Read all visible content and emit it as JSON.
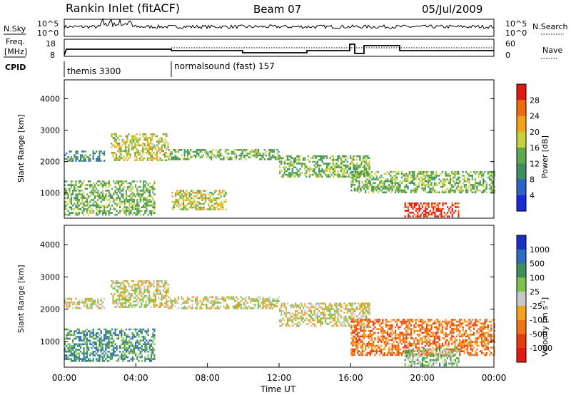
{
  "header": {
    "title": "Rankin Inlet (fitACF)",
    "beam": "Beam 07",
    "date": "05/Jul/2009"
  },
  "top_panels": {
    "nsky_label": "N.Sky",
    "nsearch_label": "N.Search",
    "freq_label_1": "Freq.",
    "freq_label_2": "[MHz]",
    "nave_label": "Nave",
    "cpid_label": "CPID",
    "nsky_ticks": [
      "10^5",
      "10^0"
    ],
    "nsearch_ticks": [
      "10^5",
      "10^0"
    ],
    "freq_ticks": [
      "18",
      "8"
    ],
    "nave_ticks": [
      "60",
      "0"
    ],
    "cpid_segments": [
      {
        "label": "themis 3300",
        "start_hour": 0
      },
      {
        "label": "normalsound (fast) 157",
        "start_hour": 6
      }
    ]
  },
  "chart_data": [
    {
      "type": "heatmap",
      "panel": "power",
      "ylabel": "Slant Range [km]",
      "xlabel": "",
      "xlim_hours": [
        0,
        24
      ],
      "ylim": [
        200,
        4600
      ],
      "yticks": [
        1000,
        2000,
        3000,
        4000
      ],
      "colorbar": {
        "label": "Power [dB]",
        "ticks": [
          "4",
          "8",
          "12",
          "16",
          "20",
          "24",
          "28"
        ],
        "colors": [
          "#1a2ad6",
          "#2d63c8",
          "#3d8f5f",
          "#5fa84e",
          "#c6d23a",
          "#f3a21c",
          "#ee6a10",
          "#e01a10"
        ]
      },
      "echo_bands": [
        {
          "t0": 0.0,
          "t1": 2.2,
          "r0": 2050,
          "r1": 2350,
          "level": 2
        },
        {
          "t0": 2.6,
          "t1": 5.8,
          "r0": 2050,
          "r1": 2900,
          "level": 4
        },
        {
          "t0": 5.8,
          "t1": 12.0,
          "r0": 2050,
          "r1": 2400,
          "level": 3
        },
        {
          "t0": 12.0,
          "t1": 17.0,
          "r0": 1500,
          "r1": 2200,
          "level": 3
        },
        {
          "t0": 16.0,
          "t1": 24.0,
          "r0": 1000,
          "r1": 1700,
          "level": 3
        },
        {
          "t0": 0.0,
          "t1": 5.0,
          "r0": 300,
          "r1": 1400,
          "level": 3
        },
        {
          "t0": 6.0,
          "t1": 9.0,
          "r0": 500,
          "r1": 1100,
          "level": 4
        },
        {
          "t0": 19.0,
          "t1": 22.0,
          "r0": 250,
          "r1": 700,
          "level": 7
        }
      ]
    },
    {
      "type": "heatmap",
      "panel": "velocity",
      "ylabel": "Slant Range [km]",
      "xlabel": "Time UT",
      "xlim_hours": [
        0,
        24
      ],
      "ylim": [
        200,
        4600
      ],
      "yticks": [
        1000,
        2000,
        3000,
        4000
      ],
      "xticks": [
        "00:00",
        "04:00",
        "08:00",
        "12:00",
        "16:00",
        "20:00",
        "00:00"
      ],
      "colorbar": {
        "label": "Velocity [m s^-1]",
        "ticks": [
          "1000",
          "500",
          "100",
          "25",
          "-25",
          "-100",
          "-500",
          "-1000"
        ],
        "colors": [
          "#1c2fc4",
          "#2f6cc0",
          "#3f8f58",
          "#7cc34a",
          "#c8c8c8",
          "#f5a21e",
          "#f07218",
          "#e63a12",
          "#e01a10"
        ]
      },
      "echo_bands": [
        {
          "t0": 0.0,
          "t1": 2.2,
          "r0": 2050,
          "r1": 2350,
          "level": 4
        },
        {
          "t0": 2.6,
          "t1": 5.8,
          "r0": 2050,
          "r1": 2900,
          "level": 4
        },
        {
          "t0": 5.8,
          "t1": 12.0,
          "r0": 2050,
          "r1": 2400,
          "level": 4
        },
        {
          "t0": 12.0,
          "t1": 17.0,
          "r0": 1500,
          "r1": 2200,
          "level": 4
        },
        {
          "t0": 0.0,
          "t1": 5.0,
          "r0": 400,
          "r1": 1400,
          "level": 2
        },
        {
          "t0": 16.0,
          "t1": 24.0,
          "r0": 600,
          "r1": 1700,
          "level": 6
        },
        {
          "t0": 19.0,
          "t1": 22.0,
          "r0": 250,
          "r1": 800,
          "level": 3
        }
      ]
    }
  ]
}
